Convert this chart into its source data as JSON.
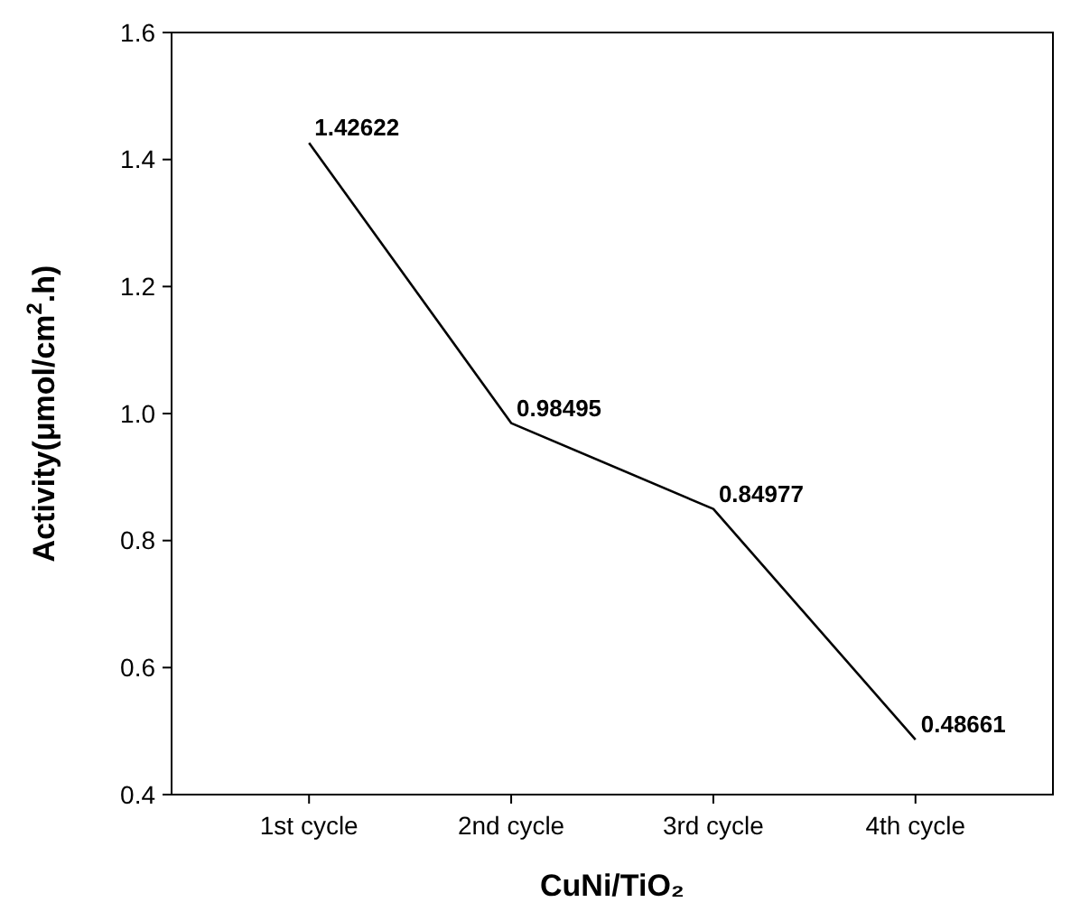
{
  "chart_data": {
    "type": "line",
    "xlabel": "CuNi/TiO₂",
    "ylabel": "Activity(μmol/cm$^{2}$.h)",
    "categories": [
      "1st cycle",
      "2nd cycle",
      "3rd cycle",
      "4th cycle"
    ],
    "series": [
      {
        "color": "#000000",
        "values": [
          1.42622,
          0.98495,
          0.84977,
          0.48661
        ]
      }
    ],
    "ylim": [
      0.4,
      1.6
    ],
    "yticks": [
      0.4,
      0.6,
      0.8,
      {
        "value": 1.0,
        "label": "1.0"
      },
      1.2,
      1.4,
      1.6
    ],
    "data_labels": true,
    "marker": "none",
    "line_style": "solid",
    "grid": false
  }
}
